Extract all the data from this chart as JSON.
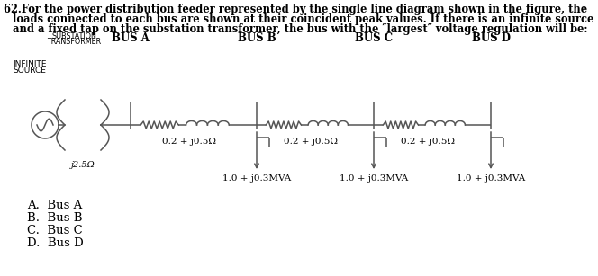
{
  "bg_color": "#ffffff",
  "line_color": "#555555",
  "text_color": "#000000",
  "font_size_title": 8.5,
  "font_size_bus": 8.0,
  "font_size_label": 7.5,
  "font_size_small": 6.5,
  "font_size_ans": 9.0,
  "title_lines": [
    "62.For the power distribution feeder represented by the single line diagram shown in the figure, the",
    "loads connected to each bus are shown at their coincident peak values. If there is an infinite source",
    "and a fixed tap on the substation transformer, the bus with the ″largest″ voltage regulation will be:"
  ],
  "substation_label1": "SUBSTATION",
  "substation_label2": "TRANSFORMER",
  "infinite_label1": "INFINITE",
  "infinite_label2": "SOURCE",
  "bus_labels": [
    "BUS A",
    "BUS B",
    "BUS C",
    "BUS D"
  ],
  "impedance_labels": [
    "0.2 + j0.5Ω",
    "0.2 + j0.5Ω",
    "0.2 + j0.5Ω"
  ],
  "load_labels": [
    "1.0 + j0.3MVA",
    "1.0 + j0.3MVA",
    "1.0 + j0.3MVA"
  ],
  "transformer_label": "j2.5Ω",
  "answers": [
    "A.  Bus A",
    "B.  Bus B",
    "C.  Bus C",
    "D.  Bus D"
  ]
}
